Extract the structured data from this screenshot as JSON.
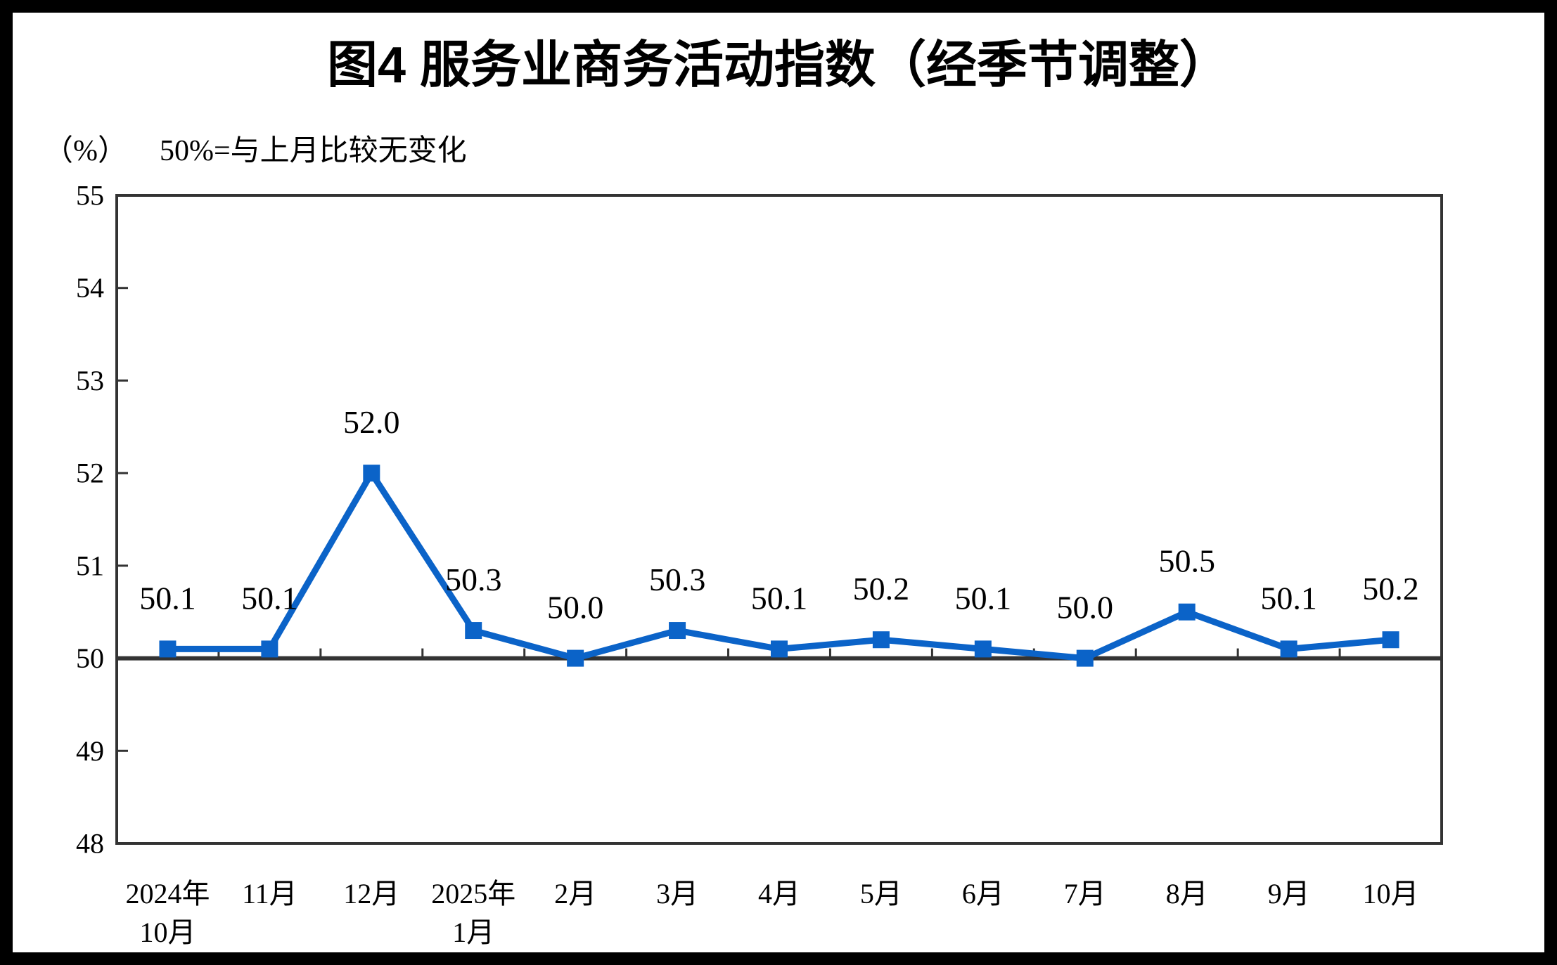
{
  "title": "图4 服务业商务活动指数（经季节调整）",
  "unit_label": "（%）",
  "note": "50%=与上月比较无变化",
  "colors": {
    "line": "#0B63C8",
    "axis": "#333333",
    "text": "#000000",
    "background": "#FFFFFF",
    "frame": "#000000"
  },
  "chart_data": {
    "type": "line",
    "title": "图4 服务业商务活动指数（经季节调整）",
    "subtitle": "50%=与上月比较无变化",
    "unit": "（%）",
    "categories": [
      [
        "2024年",
        "10月"
      ],
      [
        "11月"
      ],
      [
        "12月"
      ],
      [
        "2025年",
        "1月"
      ],
      [
        "2月"
      ],
      [
        "3月"
      ],
      [
        "4月"
      ],
      [
        "5月"
      ],
      [
        "6月"
      ],
      [
        "7月"
      ],
      [
        "8月"
      ],
      [
        "9月"
      ],
      [
        "10月"
      ]
    ],
    "values": [
      50.1,
      50.1,
      52.0,
      50.3,
      50.0,
      50.3,
      50.1,
      50.2,
      50.1,
      50.0,
      50.5,
      50.1,
      50.2
    ],
    "data_labels": [
      "50.1",
      "50.1",
      "52.0",
      "50.3",
      "50.0",
      "50.3",
      "50.1",
      "50.2",
      "50.1",
      "50.0",
      "50.5",
      "50.1",
      "50.2"
    ],
    "ylim": [
      48,
      55
    ],
    "yticks": [
      48,
      49,
      50,
      51,
      52,
      53,
      54,
      55
    ],
    "baseline_value": 50,
    "grid": false,
    "legend": null,
    "marker": "square"
  }
}
